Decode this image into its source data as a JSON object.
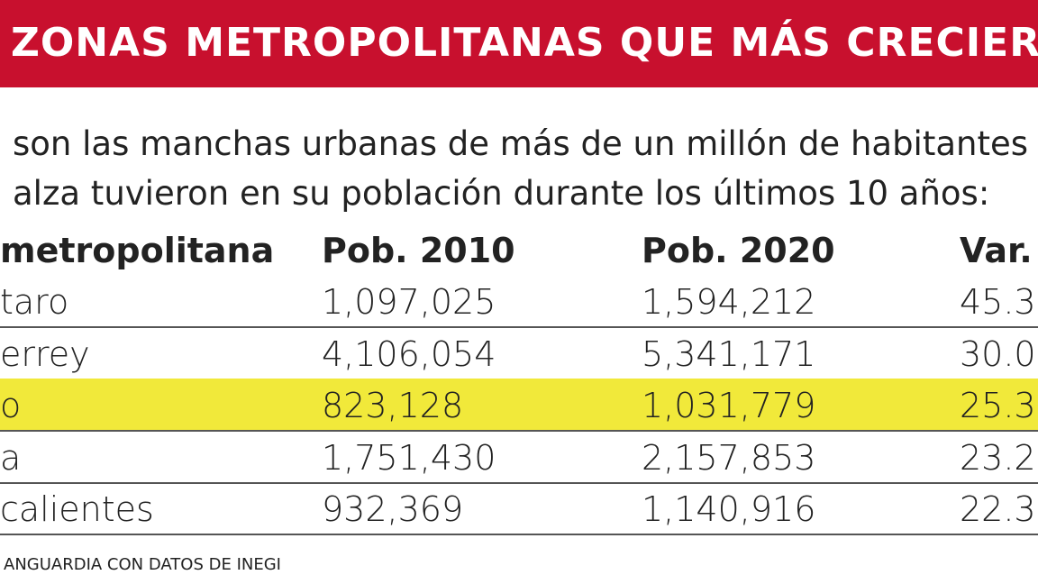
{
  "header": {
    "title": "ZONAS METROPOLITANAS QUE MÁS CRECIER"
  },
  "subtitle": [
    "son las manchas urbanas de más de un millón de habitantes",
    "alza tuvieron en su población durante los últimos 10 años:"
  ],
  "table": {
    "columns": [
      "metropolitana",
      "Pob. 2010",
      "Pob. 2020",
      "Var."
    ],
    "rows": [
      [
        "taro",
        "1,097,025",
        "1,594,212",
        "45.3"
      ],
      [
        "errey",
        "4,106,054",
        "5,341,171",
        "30.0"
      ],
      [
        "o",
        "823,128",
        "1,031,779",
        "25.3"
      ],
      [
        "a",
        "1,751,430",
        "2,157,853",
        "23.2"
      ],
      [
        "calientes",
        "932,369",
        "1,140,916",
        "22.3"
      ]
    ],
    "highlighted_row": 2
  },
  "source": "ANGUARDIA CON DATOS DE INEGI"
}
